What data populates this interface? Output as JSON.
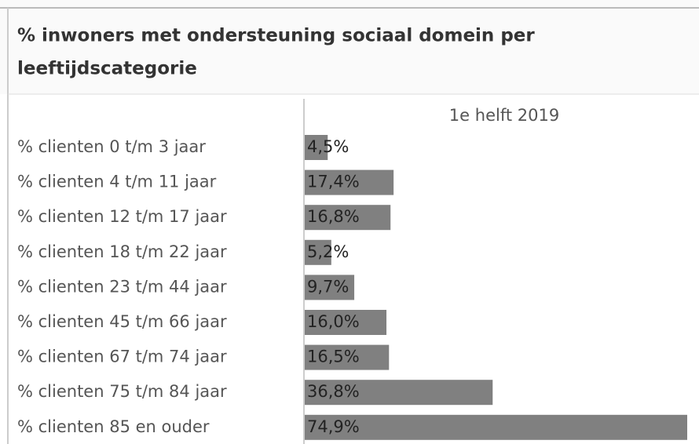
{
  "chart_data": {
    "type": "bar",
    "orientation": "horizontal",
    "title": "% inwoners met ondersteuning sociaal domein per",
    "title_line2": "leeftijdscategorie",
    "categories": [
      "% clienten 0 t/m 3 jaar",
      "% clienten 4 t/m 11 jaar",
      "% clienten 12 t/m 17 jaar",
      "% clienten 18 t/m 22 jaar",
      "% clienten 23 t/m 44 jaar",
      "% clienten 45 t/m 66 jaar",
      "% clienten 67 t/m 74 jaar",
      "% clienten 75 t/m 84 jaar",
      "% clienten 85 en ouder"
    ],
    "series": [
      {
        "name": "1e helft 2019",
        "color": "#808080",
        "values": [
          4.5,
          17.4,
          16.8,
          5.2,
          9.7,
          16.0,
          16.5,
          36.8,
          74.9
        ],
        "value_labels": [
          "4,5%",
          "17,4%",
          "16,8%",
          "5,2%",
          "9,7%",
          "16,0%",
          "16,5%",
          "36,8%",
          "74,9%"
        ]
      }
    ]
  }
}
